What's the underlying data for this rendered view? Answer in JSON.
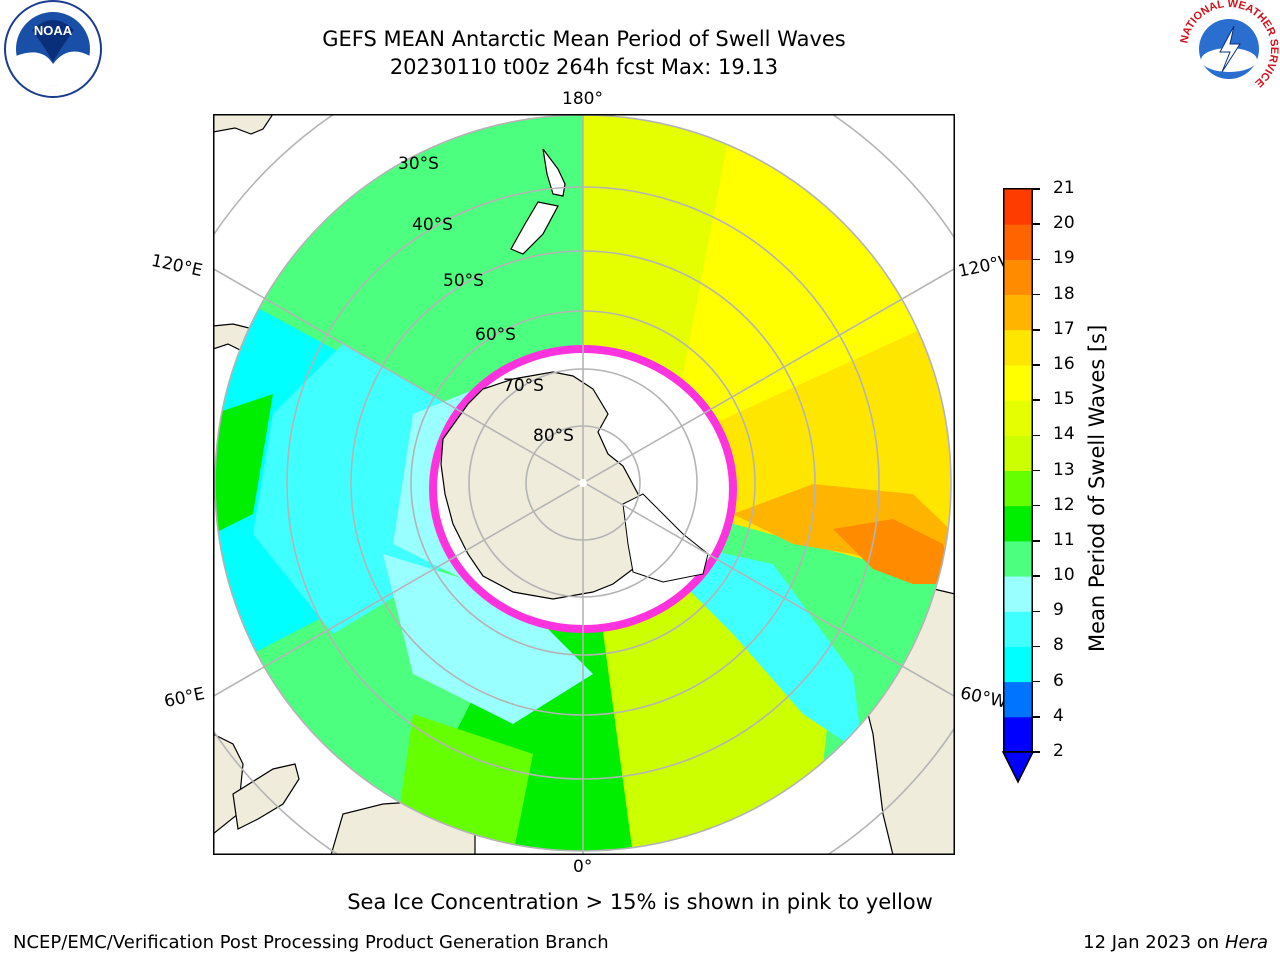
{
  "title": {
    "line1": "GEFS MEAN Antarctic Mean Period of Swell Waves",
    "line2": "20230110 t00z 264h fcst   Max: 19.13"
  },
  "map": {
    "projection": "south polar stereographic",
    "longitude_labels": {
      "top": "180°",
      "bottom": "0°",
      "upper_left": "120°E",
      "upper_right": "120°W",
      "lower_left": "60°E",
      "lower_right": "60°W"
    },
    "latitude_labels": [
      "30°S",
      "40°S",
      "50°S",
      "60°S",
      "70°S",
      "80°S"
    ],
    "colors": {
      "land": "#efecdc",
      "ocean_background": "#ffffff",
      "graticule": "#b4b4b4",
      "sea_ice_edge": "#ff33dd"
    }
  },
  "colorbar": {
    "label": "Mean Period of Swell Waves [s]",
    "ticks": [
      "2",
      "4",
      "6",
      "8",
      "9",
      "10",
      "11",
      "12",
      "13",
      "14",
      "15",
      "16",
      "17",
      "18",
      "19",
      "20",
      "21"
    ],
    "colors": [
      "#0000ff",
      "#0073ff",
      "#00ffff",
      "#3fffff",
      "#99ffff",
      "#4dff7f",
      "#00ee00",
      "#66ff00",
      "#ccff00",
      "#e6ff00",
      "#ffff00",
      "#ffe600",
      "#ffb400",
      "#ff8c00",
      "#ff6400",
      "#ff3c00",
      "#ff0000"
    ],
    "extend": "min"
  },
  "note": "Sea Ice Concentration > 15% is shown in pink to yellow",
  "footer": {
    "left": "NCEP/EMC/Verification Post Processing Product Generation Branch",
    "right_prefix": "12 Jan 2023 on ",
    "right_host": "Hera"
  },
  "logos": {
    "left": "NOAA",
    "right": "NATIONAL WEATHER SERVICE"
  }
}
